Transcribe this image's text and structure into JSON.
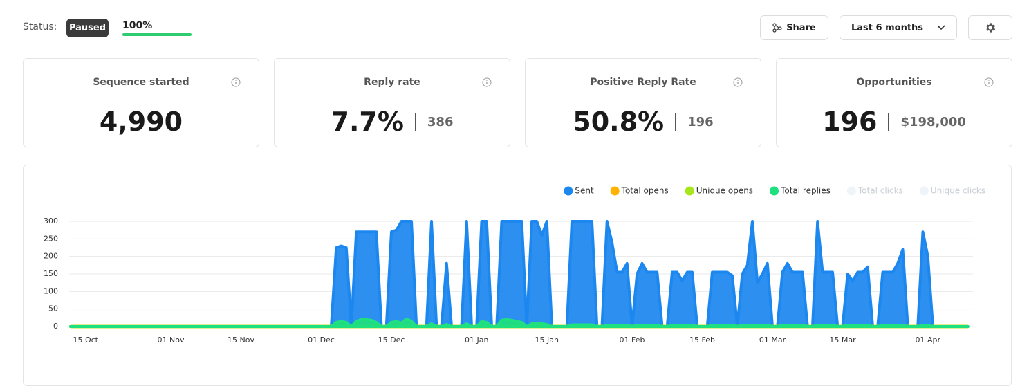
{
  "header": {
    "status_label": "Status:",
    "status": "Paused",
    "progress": {
      "value": 100,
      "label": "100%"
    },
    "share": "Share",
    "range": "Last 6 months"
  },
  "cards": [
    {
      "title": "Sequence started",
      "value": "4,990"
    },
    {
      "title": "Reply rate",
      "value": "7.7%",
      "secondary": "386"
    },
    {
      "title": "Positive Reply Rate",
      "value": "50.8%",
      "secondary": "196"
    },
    {
      "title": "Opportunities",
      "value": "196",
      "secondary": "$198,000"
    }
  ],
  "chart_data": {
    "type": "area",
    "legend": "top-right",
    "grid": true,
    "ylim": [
      0,
      300
    ],
    "yticks": [
      0,
      50,
      100,
      150,
      200,
      250,
      300
    ],
    "categories": [
      null,
      null,
      null,
      "15 Oct",
      null,
      null,
      null,
      null,
      null,
      null,
      null,
      null,
      null,
      null,
      null,
      null,
      null,
      null,
      null,
      null,
      "01 Nov",
      null,
      null,
      null,
      null,
      null,
      null,
      null,
      null,
      null,
      null,
      null,
      null,
      null,
      "15 Nov",
      null,
      null,
      null,
      null,
      null,
      null,
      null,
      null,
      null,
      null,
      null,
      null,
      null,
      null,
      null,
      "01 Dec",
      null,
      null,
      null,
      null,
      null,
      null,
      null,
      null,
      null,
      null,
      null,
      null,
      null,
      "15 Dec",
      null,
      null,
      null,
      null,
      null,
      null,
      null,
      null,
      null,
      null,
      null,
      null,
      null,
      null,
      null,
      null,
      "01 Jan",
      null,
      null,
      null,
      null,
      null,
      null,
      null,
      null,
      null,
      null,
      null,
      null,
      null,
      "15 Jan",
      null,
      null,
      null,
      null,
      null,
      null,
      null,
      null,
      null,
      null,
      null,
      null,
      null,
      null,
      null,
      null,
      "01 Feb",
      null,
      null,
      null,
      null,
      null,
      null,
      null,
      null,
      null,
      null,
      null,
      null,
      null,
      "15 Feb",
      null,
      null,
      null,
      null,
      null,
      null,
      null,
      null,
      null,
      null,
      null,
      null,
      null,
      "01 Mar",
      null,
      null,
      null,
      null,
      null,
      null,
      null,
      null,
      null,
      null,
      null,
      null,
      null,
      "15 Mar",
      null,
      null,
      null,
      null,
      null,
      null,
      null,
      null,
      null,
      null,
      null,
      null,
      null,
      null,
      null,
      null,
      "01 Apr",
      null,
      null,
      null,
      null,
      null,
      null,
      null,
      null
    ],
    "series": [
      {
        "name": "Sent",
        "color": "#1b87ef",
        "style": "area",
        "values": [
          0,
          0,
          0,
          0,
          0,
          0,
          0,
          0,
          0,
          0,
          0,
          0,
          0,
          0,
          0,
          0,
          0,
          0,
          0,
          0,
          0,
          0,
          0,
          0,
          0,
          0,
          0,
          0,
          0,
          0,
          0,
          0,
          0,
          0,
          0,
          0,
          0,
          0,
          0,
          0,
          0,
          0,
          0,
          0,
          0,
          0,
          0,
          0,
          0,
          0,
          0,
          0,
          0,
          225,
          230,
          225,
          0,
          270,
          270,
          270,
          270,
          270,
          0,
          0,
          270,
          275,
          300,
          300,
          300,
          0,
          0,
          0,
          300,
          0,
          0,
          180,
          0,
          0,
          0,
          300,
          0,
          0,
          300,
          300,
          0,
          0,
          300,
          300,
          300,
          300,
          300,
          0,
          300,
          300,
          260,
          300,
          0,
          0,
          0,
          0,
          300,
          300,
          300,
          300,
          300,
          0,
          0,
          300,
          240,
          155,
          155,
          180,
          0,
          150,
          180,
          155,
          155,
          155,
          0,
          0,
          155,
          155,
          130,
          155,
          155,
          0,
          0,
          0,
          155,
          155,
          155,
          155,
          145,
          0,
          150,
          175,
          300,
          125,
          150,
          180,
          0,
          0,
          155,
          180,
          155,
          155,
          155,
          0,
          0,
          300,
          155,
          155,
          155,
          0,
          0,
          150,
          130,
          155,
          155,
          170,
          0,
          0,
          155,
          155,
          155,
          180,
          220,
          0,
          0,
          0,
          270,
          200,
          0,
          0,
          0,
          0,
          0,
          0,
          0,
          0
        ]
      },
      {
        "name": "Total opens",
        "color": "#ffb300",
        "style": "line",
        "values": [
          0,
          0,
          0,
          0,
          0,
          0,
          0,
          0,
          0,
          0,
          0,
          0,
          0,
          0,
          0,
          0,
          0,
          0,
          0,
          0,
          0,
          0,
          0,
          0,
          0,
          0,
          0,
          0,
          0,
          0,
          0,
          0,
          0,
          0,
          0,
          0,
          0,
          0,
          0,
          0,
          0,
          0,
          0,
          0,
          0,
          0,
          0,
          0,
          0,
          0,
          0,
          0,
          0,
          0,
          0,
          0,
          0,
          0,
          0,
          0,
          0,
          0,
          0,
          0,
          0,
          0,
          0,
          0,
          0,
          0,
          0,
          0,
          0,
          0,
          0,
          0,
          0,
          0,
          0,
          0,
          0,
          0,
          0,
          0,
          0,
          0,
          0,
          0,
          0,
          0,
          0,
          0,
          0,
          0,
          0,
          0,
          0,
          0,
          0,
          0,
          0,
          0,
          0,
          0,
          0,
          0,
          0,
          0,
          0,
          0,
          0,
          0,
          0,
          0,
          0,
          0,
          0,
          0,
          0,
          0,
          0,
          0,
          0,
          0,
          0,
          0,
          0,
          0,
          0,
          0,
          0,
          0,
          0,
          0,
          0,
          0,
          0,
          0,
          0,
          0,
          0,
          0,
          0,
          0,
          0,
          0,
          0,
          0,
          0,
          0,
          0,
          0,
          0,
          0,
          0,
          0,
          0,
          0,
          0,
          0,
          0,
          0,
          0,
          0,
          0,
          0,
          0,
          0,
          0,
          0,
          0,
          0,
          0,
          0,
          0,
          0,
          0,
          0,
          0,
          0
        ]
      },
      {
        "name": "Unique opens",
        "color": "#a6e61a",
        "style": "line",
        "values": [
          0,
          0,
          0,
          0,
          0,
          0,
          0,
          0,
          0,
          0,
          0,
          0,
          0,
          0,
          0,
          0,
          0,
          0,
          0,
          0,
          0,
          0,
          0,
          0,
          0,
          0,
          0,
          0,
          0,
          0,
          0,
          0,
          0,
          0,
          0,
          0,
          0,
          0,
          0,
          0,
          0,
          0,
          0,
          0,
          0,
          0,
          0,
          0,
          0,
          0,
          0,
          0,
          0,
          0,
          0,
          0,
          0,
          0,
          0,
          0,
          0,
          0,
          0,
          0,
          0,
          0,
          0,
          0,
          0,
          0,
          0,
          0,
          0,
          0,
          0,
          0,
          0,
          0,
          0,
          0,
          0,
          0,
          0,
          0,
          0,
          0,
          0,
          0,
          0,
          0,
          0,
          0,
          0,
          0,
          0,
          0,
          0,
          0,
          0,
          0,
          0,
          0,
          0,
          0,
          0,
          0,
          0,
          0,
          0,
          0,
          0,
          0,
          0,
          0,
          0,
          0,
          0,
          0,
          0,
          0,
          0,
          0,
          0,
          0,
          0,
          0,
          0,
          0,
          0,
          0,
          0,
          0,
          0,
          0,
          0,
          0,
          0,
          0,
          0,
          0,
          0,
          0,
          0,
          0,
          0,
          0,
          0,
          0,
          0,
          0,
          0,
          0,
          0,
          0,
          0,
          0,
          0,
          0,
          0,
          0,
          0,
          0,
          0,
          0,
          0,
          0,
          0,
          0,
          0,
          0,
          0,
          0,
          0,
          0,
          0,
          0,
          0,
          0,
          0,
          0
        ]
      },
      {
        "name": "Total replies",
        "color": "#1ee07e",
        "style": "area",
        "values": [
          0,
          0,
          0,
          0,
          0,
          0,
          0,
          0,
          0,
          0,
          0,
          0,
          0,
          0,
          0,
          0,
          0,
          0,
          0,
          0,
          0,
          0,
          0,
          0,
          0,
          0,
          0,
          0,
          0,
          0,
          0,
          0,
          0,
          0,
          0,
          0,
          0,
          0,
          0,
          0,
          0,
          0,
          0,
          0,
          0,
          0,
          0,
          0,
          0,
          0,
          0,
          0,
          0,
          12,
          15,
          12,
          0,
          15,
          20,
          20,
          18,
          12,
          0,
          0,
          12,
          15,
          10,
          22,
          15,
          0,
          0,
          0,
          8,
          0,
          0,
          6,
          0,
          0,
          0,
          8,
          0,
          0,
          15,
          12,
          0,
          0,
          18,
          20,
          18,
          15,
          12,
          0,
          8,
          10,
          8,
          6,
          0,
          0,
          0,
          0,
          5,
          5,
          5,
          5,
          5,
          0,
          0,
          4,
          4,
          4,
          4,
          4,
          0,
          4,
          4,
          4,
          4,
          4,
          0,
          0,
          4,
          4,
          4,
          4,
          4,
          0,
          0,
          0,
          4,
          4,
          4,
          4,
          4,
          0,
          4,
          4,
          4,
          4,
          4,
          4,
          0,
          0,
          4,
          4,
          4,
          4,
          4,
          0,
          0,
          4,
          4,
          4,
          4,
          0,
          0,
          4,
          4,
          4,
          4,
          4,
          0,
          0,
          4,
          4,
          4,
          4,
          4,
          0,
          0,
          0,
          4,
          4,
          0,
          0,
          0,
          0,
          0,
          0,
          0,
          0
        ]
      },
      {
        "name": "Total clicks",
        "color": "#eef4f7",
        "hidden": true
      },
      {
        "name": "Unique clicks",
        "color": "#eef4f7",
        "hidden": true
      }
    ]
  }
}
